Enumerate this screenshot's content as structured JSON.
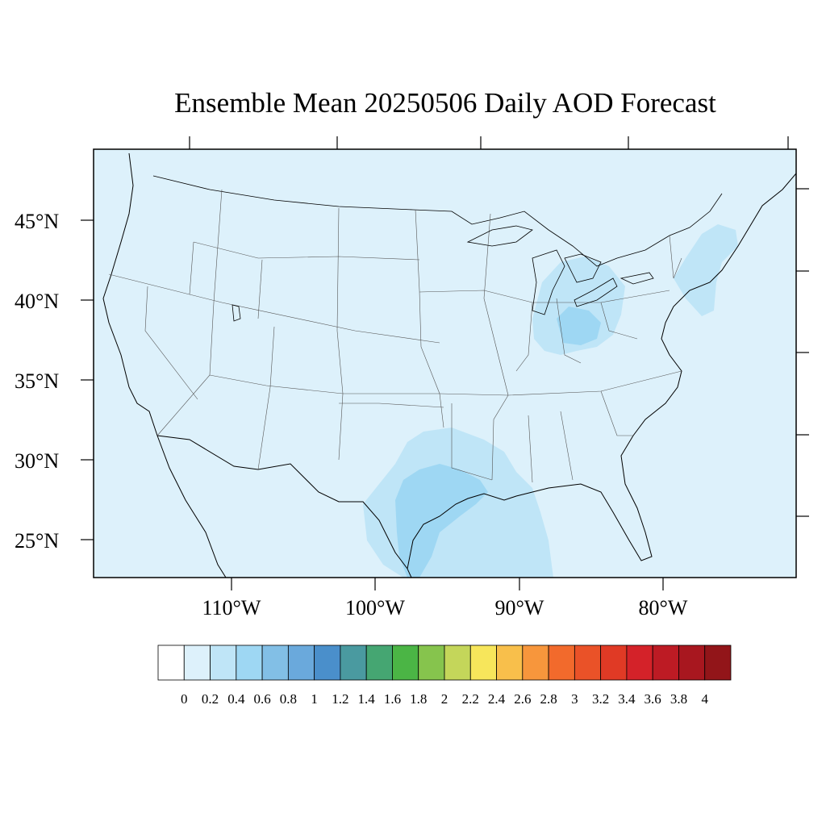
{
  "title": "Ensemble Mean 20250506 Daily AOD Forecast",
  "map": {
    "lat_labels": [
      "45°N",
      "40°N",
      "35°N",
      "30°N",
      "25°N"
    ],
    "lon_labels": [
      "110°W",
      "100°W",
      "90°W",
      "80°W"
    ],
    "lat_values": [
      45,
      40,
      35,
      30,
      25
    ],
    "lon_values": [
      -110,
      -100,
      -90,
      -80
    ],
    "background_level": "0 - 0.2",
    "colors": {
      "ocean_land_base": "#ddf1fb",
      "light_plume": "#bfe5f7",
      "mid_plume": "#9ed7f3"
    }
  },
  "colorbar": {
    "labels": [
      "0",
      "0.2",
      "0.4",
      "0.6",
      "0.8",
      "1",
      "1.2",
      "1.4",
      "1.6",
      "1.8",
      "2",
      "2.2",
      "2.4",
      "2.6",
      "2.8",
      "3",
      "3.2",
      "3.4",
      "3.6",
      "3.8",
      "4"
    ],
    "colors": [
      "#ffffff",
      "#ddf1fb",
      "#bfe5f7",
      "#9ed7f3",
      "#82bfe6",
      "#6aa9dc",
      "#4a8fcb",
      "#4a9aa0",
      "#45a672",
      "#4bb545",
      "#86c44d",
      "#c4d65a",
      "#f7e65b",
      "#f8bf4b",
      "#f7963c",
      "#f26a2c",
      "#ea5228",
      "#e03a25",
      "#d42229",
      "#bd1b24",
      "#a8171f",
      "#921519"
    ]
  }
}
